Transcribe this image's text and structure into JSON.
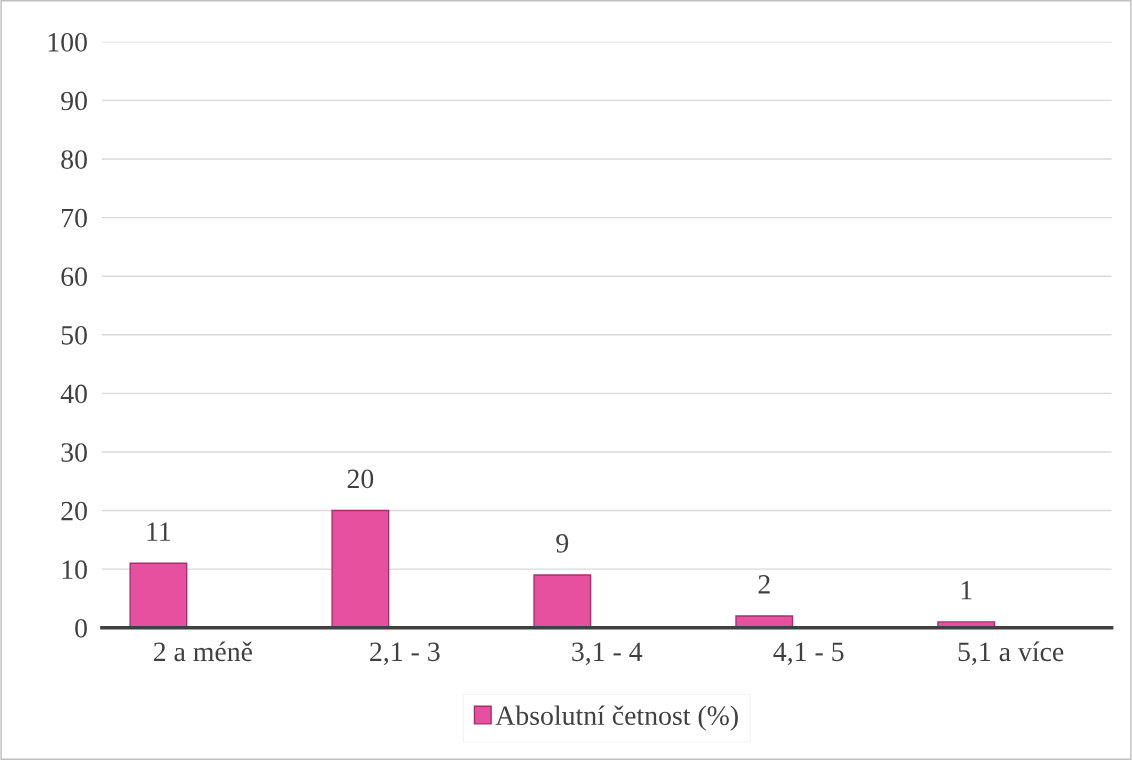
{
  "chart_data": {
    "type": "bar",
    "categories": [
      "2 a méně",
      "2,1 - 3",
      "3,1 - 4",
      "4,1 - 5",
      "5,1 a více"
    ],
    "series": [
      {
        "name": "Absolutní četnost (%)",
        "color": "#e6509e",
        "values": [
          11,
          20,
          9,
          2,
          1
        ]
      }
    ],
    "ylim": [
      0,
      100
    ],
    "yticks": [
      0,
      10,
      20,
      30,
      40,
      50,
      60,
      70,
      80,
      90,
      100
    ],
    "grid": "y",
    "legend": "bottom",
    "data_labels": true
  }
}
